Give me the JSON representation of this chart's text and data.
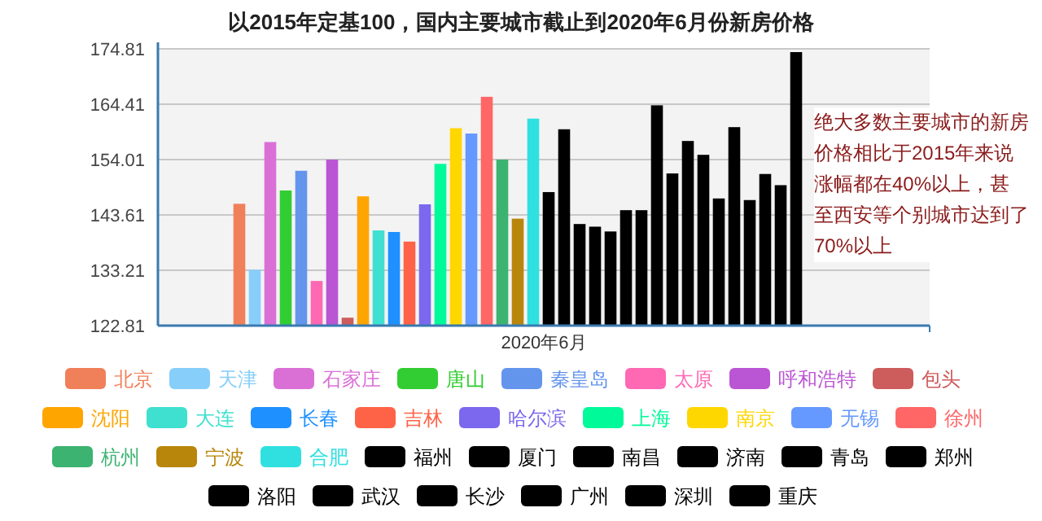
{
  "chart_data": {
    "type": "bar",
    "title": "以2015年定基100，国内主要城市截止到2020年6月份新房价格",
    "categories": [
      "2020年6月"
    ],
    "ylim": [
      122.81,
      174.81
    ],
    "yticks": [
      122.81,
      133.21,
      143.61,
      154.01,
      164.41,
      174.81
    ],
    "grid": "y",
    "legend": "bottom",
    "annotations": [
      "绝大多数主要城市的新房价格相比于2015年来说涨幅都在40%以上，甚至西安等个别城市达到了70%以上"
    ],
    "series": [
      {
        "name": "北京",
        "color": "#f0805a",
        "values": [
          145.7
        ]
      },
      {
        "name": "天津",
        "color": "#87cefa",
        "values": [
          133.3
        ]
      },
      {
        "name": "石家庄",
        "color": "#da70d6",
        "values": [
          157.3
        ]
      },
      {
        "name": "唐山",
        "color": "#32cd32",
        "values": [
          148.2
        ]
      },
      {
        "name": "秦皇岛",
        "color": "#6495ed",
        "values": [
          151.9
        ]
      },
      {
        "name": "太原",
        "color": "#ff69b4",
        "values": [
          131.2
        ]
      },
      {
        "name": "呼和浩特",
        "color": "#ba55d3",
        "values": [
          154.0
        ]
      },
      {
        "name": "包头",
        "color": "#cd5c5c",
        "values": [
          124.3
        ]
      },
      {
        "name": "沈阳",
        "color": "#ffa500",
        "values": [
          147.1
        ]
      },
      {
        "name": "大连",
        "color": "#40e0d0",
        "values": [
          140.7
        ]
      },
      {
        "name": "长春",
        "color": "#1e90ff",
        "values": [
          140.4
        ]
      },
      {
        "name": "吉林",
        "color": "#ff6347",
        "values": [
          138.6
        ]
      },
      {
        "name": "哈尔滨",
        "color": "#7b68ee",
        "values": [
          145.6
        ]
      },
      {
        "name": "上海",
        "color": "#00fa9a",
        "values": [
          153.2
        ]
      },
      {
        "name": "南京",
        "color": "#ffd700",
        "values": [
          159.9
        ]
      },
      {
        "name": "无锡",
        "color": "#6699ff",
        "values": [
          158.9
        ]
      },
      {
        "name": "徐州",
        "color": "#ff6666",
        "values": [
          165.8
        ]
      },
      {
        "name": "杭州",
        "color": "#3cb371",
        "values": [
          154.0
        ]
      },
      {
        "name": "宁波",
        "color": "#b8860b",
        "values": [
          142.9
        ]
      },
      {
        "name": "合肥",
        "color": "#30e0e0",
        "values": [
          161.7
        ]
      },
      {
        "name": "福州",
        "color": "#000000",
        "values": [
          147.9
        ]
      },
      {
        "name": "厦门",
        "color": "#000000",
        "values": [
          159.7
        ]
      },
      {
        "name": "南昌",
        "color": "#000000",
        "values": [
          141.9
        ]
      },
      {
        "name": "济南",
        "color": "#000000",
        "values": [
          141.4
        ]
      },
      {
        "name": "青岛",
        "color": "#000000",
        "values": [
          140.5
        ]
      },
      {
        "name": "郑州",
        "color": "#000000",
        "values": [
          144.5
        ]
      },
      {
        "name": "洛阳",
        "color": "#000000",
        "values": [
          144.5
        ]
      },
      {
        "name": "武汉",
        "color": "#000000",
        "values": [
          164.2
        ]
      },
      {
        "name": "长沙",
        "color": "#000000",
        "values": [
          151.4
        ]
      },
      {
        "name": "广州",
        "color": "#000000",
        "values": [
          157.5
        ]
      },
      {
        "name": "深圳",
        "color": "#000000",
        "values": [
          154.9
        ]
      },
      {
        "name": "重庆",
        "color": "#000000",
        "values": [
          146.7
        ]
      },
      {
        "color": "#000000",
        "values": [
          160.1
        ]
      },
      {
        "color": "#000000",
        "values": [
          146.4
        ]
      },
      {
        "color": "#000000",
        "values": [
          151.3
        ]
      },
      {
        "color": "#000000",
        "values": [
          149.2
        ]
      },
      {
        "color": "#000000",
        "values": [
          174.2
        ]
      }
    ]
  }
}
